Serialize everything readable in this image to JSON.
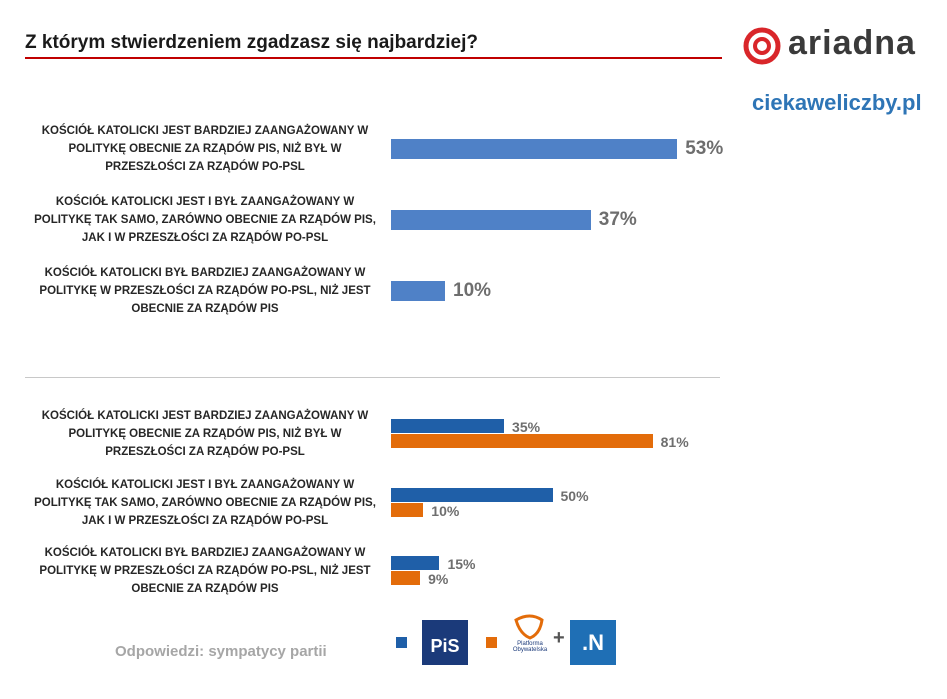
{
  "header": {
    "title": "Z którym stwierdzeniem zgadzasz się najbardziej?",
    "brand": "ariadna",
    "site": "ciekaweliczby.pl"
  },
  "chart_data": [
    {
      "type": "bar",
      "orientation": "horizontal",
      "categories": [
        "KOŚCIÓŁ KATOLICKI JEST BARDZIEJ ZAANGAŻOWANY W POLITYKĘ OBECNIE ZA RZĄDÓW PIS, NIŻ BYŁ W PRZESZŁOŚCI ZA RZĄDÓW PO-PSL",
        "KOŚCIÓŁ KATOLICKI JEST I BYŁ ZAANGAŻOWANY W POLITYKĘ TAK SAMO, ZARÓWNO OBECNIE ZA RZĄDÓW PIS, JAK I W PRZESZŁOŚCI ZA RZĄDÓW PO-PSL",
        "KOŚCIÓŁ KATOLICKI BYŁ BARDZIEJ ZAANGAŻOWANY W POLITYKĘ W PRZESZŁOŚCI ZA RZĄDÓW PO-PSL, NIŻ JEST OBECNIE ZA RZĄDÓW PIS"
      ],
      "values": [
        53,
        37,
        10
      ],
      "value_labels": [
        "53%",
        "37%",
        "10%"
      ],
      "color": "#4f81c7"
    },
    {
      "type": "grouped-bar",
      "orientation": "horizontal",
      "categories": [
        "KOŚCIÓŁ KATOLICKI JEST BARDZIEJ ZAANGAŻOWANY W POLITYKĘ OBECNIE ZA RZĄDÓW PIS, NIŻ BYŁ W PRZESZŁOŚCI ZA RZĄDÓW PO-PSL",
        "KOŚCIÓŁ KATOLICKI JEST I BYŁ ZAANGAŻOWANY W POLITYKĘ TAK SAMO, ZARÓWNO OBECNIE ZA RZĄDÓW PIS, JAK I W PRZESZŁOŚCI ZA RZĄDÓW PO-PSL",
        "KOŚCIÓŁ KATOLICKI BYŁ BARDZIEJ ZAANGAŻOWANY W POLITYKĘ W PRZESZŁOŚCI ZA RZĄDÓW PO-PSL, NIŻ JEST OBECNIE ZA RZĄDÓW PIS"
      ],
      "series": [
        {
          "name": "PiS",
          "color": "#1f5fa8",
          "values": [
            35,
            50,
            15
          ],
          "value_labels": [
            "35%",
            "50%",
            "15%"
          ]
        },
        {
          "name": "Platforma Obywatelska",
          "color": "#e36c0a",
          "values": [
            81,
            10,
            9
          ],
          "value_labels": [
            "81%",
            "10%",
            "9%"
          ]
        }
      ]
    }
  ],
  "footer": {
    "note": "Odpowiedzi: sympatycy partii",
    "legend_plus": "+",
    "legend_extra": ".N"
  }
}
